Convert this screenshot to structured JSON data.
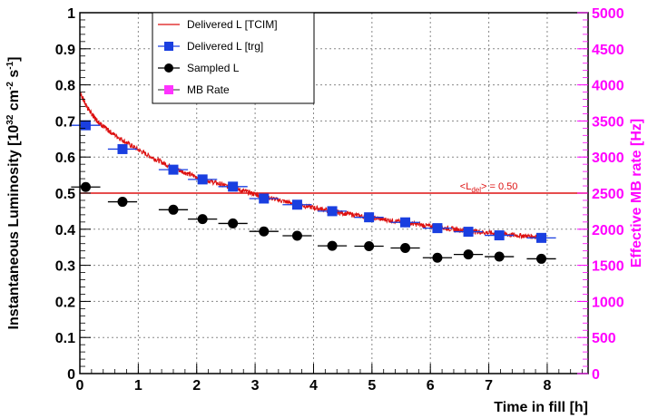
{
  "chart_data": {
    "type": "line",
    "title": "",
    "xlabel": "Time in fill [h]",
    "ylabel": "Instantaneous Luminosity [10^32 cm^-2 s^-1]",
    "ylabel_parts": {
      "main": "Instantaneous Luminosity [10",
      "exp1": "32",
      "mid": " cm",
      "exp2": "-2",
      "mid2": " s",
      "exp3": "-1",
      "end": "]"
    },
    "y2label": "Effective MB rate [Hz]",
    "xlim": [
      0,
      8.7
    ],
    "ylim": [
      0,
      1.0
    ],
    "y2lim": [
      0,
      5000
    ],
    "x_ticks": [
      0,
      1,
      2,
      3,
      4,
      5,
      6,
      7,
      8
    ],
    "y_ticks": [
      0,
      0.1,
      0.2,
      0.3,
      0.4,
      0.5,
      0.6,
      0.7,
      0.8,
      0.9,
      1
    ],
    "y2_ticks": [
      0,
      500,
      1000,
      1500,
      2000,
      2500,
      3000,
      3500,
      4000,
      4500,
      5000
    ],
    "grid": true,
    "legend_position": "top-left",
    "legend": [
      "Delivered L [TCIM]",
      "Delivered L [trg]",
      "Sampled L",
      "MB Rate"
    ],
    "series": [
      {
        "name": "Delivered L [TCIM]",
        "type": "line",
        "color": "#dd1111",
        "x": [
          0.0,
          0.1,
          0.2,
          0.3,
          0.4,
          0.5,
          0.75,
          1.0,
          1.25,
          1.5,
          1.75,
          2.0,
          2.25,
          2.5,
          2.75,
          3.0,
          3.25,
          3.5,
          3.75,
          4.0,
          4.25,
          4.5,
          4.75,
          5.0,
          5.25,
          5.5,
          5.75,
          6.0,
          6.25,
          6.5,
          6.75,
          7.0,
          7.25,
          7.5,
          7.75,
          7.9
        ],
        "values": [
          0.78,
          0.745,
          0.72,
          0.7,
          0.685,
          0.672,
          0.645,
          0.62,
          0.598,
          0.578,
          0.56,
          0.545,
          0.532,
          0.52,
          0.508,
          0.497,
          0.487,
          0.477,
          0.468,
          0.46,
          0.452,
          0.445,
          0.438,
          0.432,
          0.426,
          0.42,
          0.414,
          0.408,
          0.403,
          0.398,
          0.394,
          0.39,
          0.386,
          0.383,
          0.38,
          0.378
        ]
      },
      {
        "name": "Delivered L [trg]",
        "type": "points",
        "color": "#1a3fe0",
        "x_err": 0.25,
        "x": [
          0.1,
          0.73,
          1.6,
          2.1,
          2.62,
          3.15,
          3.72,
          4.32,
          4.95,
          5.57,
          6.12,
          6.65,
          7.18,
          7.9
        ],
        "values": [
          0.688,
          0.622,
          0.565,
          0.538,
          0.518,
          0.485,
          0.468,
          0.45,
          0.433,
          0.419,
          0.403,
          0.393,
          0.383,
          0.376
        ]
      },
      {
        "name": "Sampled L",
        "type": "points",
        "color": "#000000",
        "x_err": 0.25,
        "x": [
          0.1,
          0.73,
          1.6,
          2.1,
          2.62,
          3.15,
          3.72,
          4.32,
          4.95,
          5.57,
          6.12,
          6.65,
          7.18,
          7.9
        ],
        "values": [
          0.517,
          0.476,
          0.454,
          0.428,
          0.416,
          0.394,
          0.382,
          0.354,
          0.353,
          0.348,
          0.321,
          0.33,
          0.324,
          0.318
        ]
      },
      {
        "name": "MB Rate",
        "type": "points",
        "color": "#ff33ff",
        "x": [],
        "values": []
      }
    ],
    "annotations": [
      {
        "kind": "hline",
        "y": 0.5,
        "color": "#dd1111",
        "label_parts": {
          "pre": "<L",
          "sub": "del",
          "post": "> =  0.50"
        }
      }
    ]
  }
}
